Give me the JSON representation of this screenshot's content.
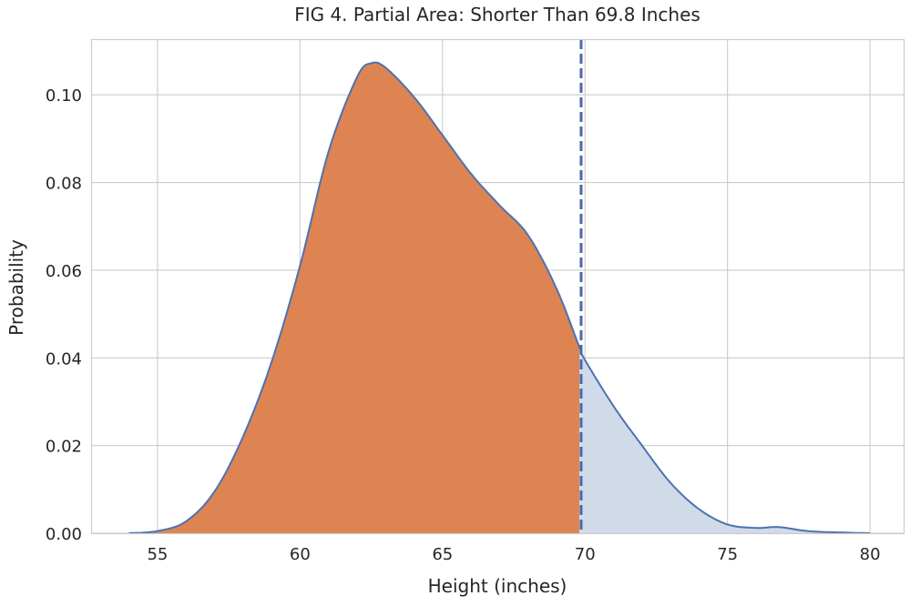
{
  "chart_data": {
    "type": "area",
    "title": "FIG 4. Partial Area: Shorter Than 69.8 Inches",
    "xlabel": "Height (inches)",
    "ylabel": "Probability",
    "xlim": [
      52.67,
      81.18
    ],
    "ylim": [
      0,
      0.1127
    ],
    "xticks": [
      55,
      60,
      65,
      70,
      75,
      80
    ],
    "yticks": [
      0.0,
      0.02,
      0.04,
      0.06,
      0.08,
      0.1
    ],
    "xtick_labels": [
      "55",
      "60",
      "65",
      "70",
      "75",
      "80"
    ],
    "ytick_labels": [
      "0.00",
      "0.02",
      "0.04",
      "0.06",
      "0.08",
      "0.10"
    ],
    "grid": true,
    "threshold": 69.8,
    "series": [
      {
        "x": [
          54,
          55,
          56,
          57,
          58,
          59,
          60,
          61,
          62,
          62.5,
          63,
          64,
          65,
          66,
          67,
          68,
          69,
          69.8,
          70,
          71,
          72,
          73,
          74,
          75,
          76,
          76.8,
          78,
          80
        ],
        "y": [
          0,
          0.0005,
          0.0027,
          0.0095,
          0.022,
          0.039,
          0.061,
          0.087,
          0.104,
          0.1072,
          0.1062,
          0.0995,
          0.0908,
          0.082,
          0.0748,
          0.068,
          0.0558,
          0.0425,
          0.0395,
          0.029,
          0.02,
          0.0115,
          0.0055,
          0.002,
          0.0012,
          0.0014,
          0.0004,
          0
        ]
      }
    ],
    "colors": {
      "line": "#4c72b0",
      "shaded_below": "#dd8452",
      "shaded_above": "#d1dae9",
      "threshold_line": "#4c68a8",
      "grid": "#cccccc"
    }
  }
}
